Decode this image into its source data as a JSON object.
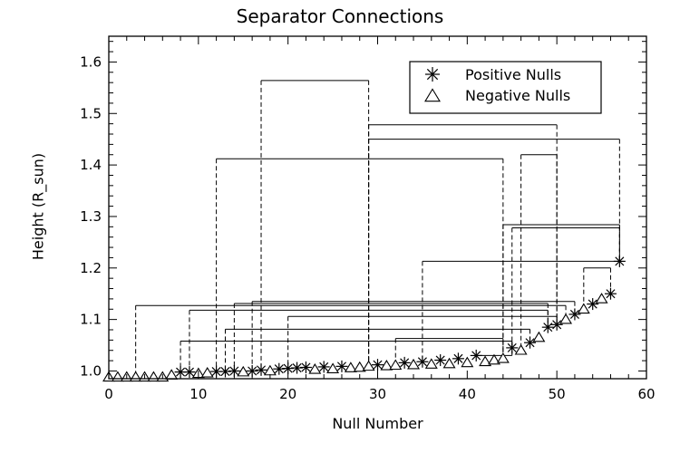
{
  "chart_data": {
    "type": "scatter",
    "title": "Separator Connections",
    "xlabel": "Null Number",
    "ylabel": "Height (R_sun)",
    "xlim": [
      0,
      60
    ],
    "ylim": [
      0.985,
      1.65
    ],
    "xticks": [
      0,
      10,
      20,
      30,
      40,
      50,
      60
    ],
    "xtick_labels": [
      "0",
      "10",
      "20",
      "30",
      "40",
      "50",
      "60"
    ],
    "yticks": [
      1.0,
      1.1,
      1.2,
      1.3,
      1.4,
      1.5,
      1.6
    ],
    "ytick_labels": [
      "1.0",
      "1.1",
      "1.2",
      "1.3",
      "1.4",
      "1.5",
      "1.6"
    ],
    "legend_position": "top-right",
    "series": [
      {
        "name": "Positive Nulls",
        "marker": "asterisk",
        "points": [
          [
            8,
            0.998
          ],
          [
            9,
            0.998
          ],
          [
            12,
            0.999
          ],
          [
            13,
            0.999
          ],
          [
            14,
            1.0
          ],
          [
            16,
            1.0
          ],
          [
            17,
            1.002
          ],
          [
            19,
            1.004
          ],
          [
            20,
            1.005
          ],
          [
            21,
            1.006
          ],
          [
            22,
            1.007
          ],
          [
            24,
            1.008
          ],
          [
            26,
            1.009
          ],
          [
            30,
            1.012
          ],
          [
            33,
            1.016
          ],
          [
            35,
            1.018
          ],
          [
            37,
            1.021
          ],
          [
            39,
            1.024
          ],
          [
            41,
            1.03
          ],
          [
            45,
            1.045
          ],
          [
            47,
            1.055
          ],
          [
            49,
            1.085
          ],
          [
            50,
            1.09
          ],
          [
            52,
            1.11
          ],
          [
            54,
            1.13
          ],
          [
            56,
            1.15
          ],
          [
            57,
            1.213
          ]
        ]
      },
      {
        "name": "Negative Nulls",
        "marker": "triangle",
        "points": [
          [
            0,
            0.988
          ],
          [
            1,
            0.988
          ],
          [
            2,
            0.988
          ],
          [
            3,
            0.988
          ],
          [
            4,
            0.988
          ],
          [
            5,
            0.988
          ],
          [
            6,
            0.988
          ],
          [
            7,
            0.992
          ],
          [
            10,
            0.995
          ],
          [
            11,
            0.996
          ],
          [
            15,
            0.998
          ],
          [
            18,
            1.0
          ],
          [
            23,
            1.003
          ],
          [
            25,
            1.004
          ],
          [
            27,
            1.006
          ],
          [
            28,
            1.007
          ],
          [
            29,
            1.009
          ],
          [
            31,
            1.01
          ],
          [
            32,
            1.011
          ],
          [
            34,
            1.012
          ],
          [
            36,
            1.013
          ],
          [
            38,
            1.014
          ],
          [
            40,
            1.016
          ],
          [
            42,
            1.018
          ],
          [
            43,
            1.021
          ],
          [
            44,
            1.024
          ],
          [
            46,
            1.04
          ],
          [
            48,
            1.065
          ],
          [
            51,
            1.1
          ],
          [
            53,
            1.12
          ],
          [
            55,
            1.14
          ]
        ]
      }
    ],
    "connections": [
      {
        "x1": 3,
        "x2": 51,
        "h": 1.127
      },
      {
        "x1": 8,
        "x2": 45,
        "h": 1.058
      },
      {
        "x1": 9,
        "x2": 49,
        "h": 1.118
      },
      {
        "x1": 12,
        "x2": 44,
        "h": 1.412
      },
      {
        "x1": 13,
        "x2": 47,
        "h": 1.081
      },
      {
        "x1": 14,
        "x2": 49,
        "h": 1.131
      },
      {
        "x1": 16,
        "x2": 52,
        "h": 1.135
      },
      {
        "x1": 17,
        "x2": 29,
        "h": 1.564
      },
      {
        "x1": 20,
        "x2": 50,
        "h": 1.106
      },
      {
        "x1": 29,
        "x2": 50,
        "h": 1.478
      },
      {
        "x1": 29,
        "x2": 57,
        "h": 1.45
      },
      {
        "x1": 32,
        "x2": 44,
        "h": 1.063
      },
      {
        "x1": 35,
        "x2": 57,
        "h": 1.213
      },
      {
        "x1": 44,
        "x2": 57,
        "h": 1.284
      },
      {
        "x1": 45,
        "x2": 57,
        "h": 1.278
      },
      {
        "x1": 46,
        "x2": 50,
        "h": 1.42
      },
      {
        "x1": 41,
        "x2": 45,
        "h": 1.03
      },
      {
        "x1": 53,
        "x2": 56,
        "h": 1.2
      }
    ]
  }
}
